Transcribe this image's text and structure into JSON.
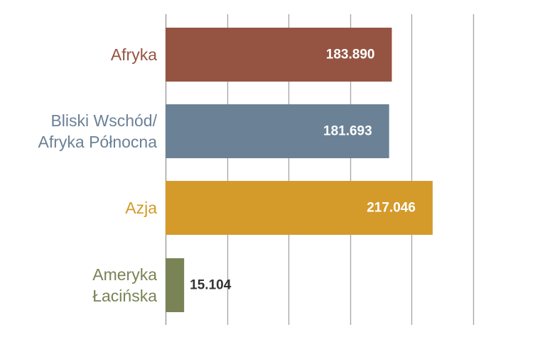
{
  "chart_data": {
    "type": "bar",
    "orientation": "horizontal",
    "categories": [
      [
        "Afryka"
      ],
      [
        "Bliski Wschód/",
        "Afryka Północna"
      ],
      [
        "Azja"
      ],
      [
        "Ameryka",
        "Łacińska"
      ]
    ],
    "values": [
      183890,
      181693,
      217046,
      15104
    ],
    "value_labels": [
      "183.890",
      "181.693",
      "217.046",
      "15.104"
    ],
    "colors": [
      "#955442",
      "#6b8196",
      "#d49a2a",
      "#798355"
    ],
    "label_colors": [
      "#955442",
      "#6b8196",
      "#d49a2a",
      "#798355"
    ],
    "value_label_inside_color": "#ffffff",
    "value_label_outside_color": "#333333",
    "xlim": [
      0,
      250000
    ],
    "x_gridlines": [
      0,
      50000,
      100000,
      150000,
      200000,
      250000
    ],
    "grid": true,
    "legend": "none",
    "title": "",
    "xlabel": "",
    "ylabel": ""
  }
}
